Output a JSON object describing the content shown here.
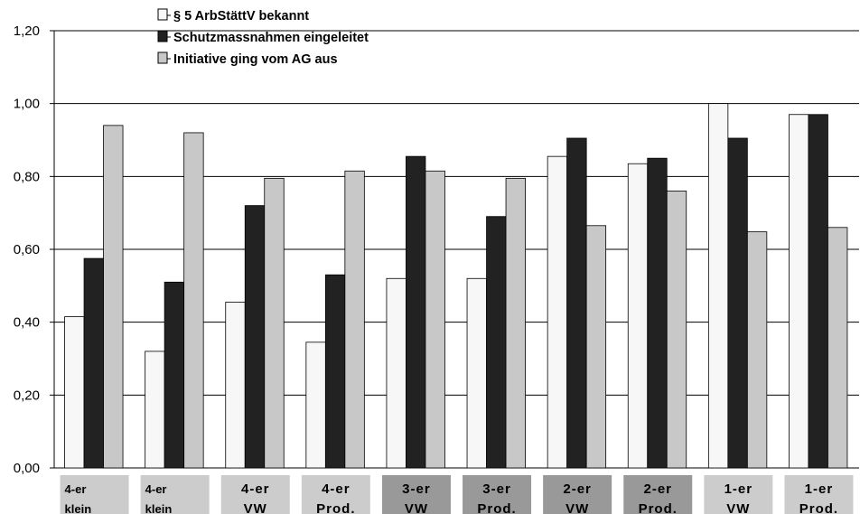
{
  "chart_data": {
    "type": "bar",
    "categories": [
      {
        "lines": [
          "4-er",
          "klein"
        ],
        "color": "#cccccc"
      },
      {
        "lines": [
          "4-er",
          "klein"
        ],
        "color": "#cccccc"
      },
      {
        "lines": [
          "4-er",
          "VW"
        ],
        "color": "#cccccc"
      },
      {
        "lines": [
          "4-er",
          "Prod."
        ],
        "color": "#cccccc"
      },
      {
        "lines": [
          "3-er",
          "VW"
        ],
        "color": "#999999"
      },
      {
        "lines": [
          "3-er",
          "Prod."
        ],
        "color": "#999999"
      },
      {
        "lines": [
          "2-er",
          "VW"
        ],
        "color": "#999999"
      },
      {
        "lines": [
          "2-er",
          "Prod."
        ],
        "color": "#999999"
      },
      {
        "lines": [
          "1-er",
          "VW"
        ],
        "color": "#cccccc"
      },
      {
        "lines": [
          "1-er",
          "Prod."
        ],
        "color": "#cccccc"
      }
    ],
    "series": [
      {
        "name": "§ 5 ArbStättV bekannt",
        "color": "#f7f7f7",
        "values": [
          0.415,
          0.32,
          0.455,
          0.345,
          0.52,
          0.52,
          0.855,
          0.835,
          1.0,
          0.97
        ]
      },
      {
        "name": "Schutzmassnahmen eingeleitet",
        "color": "#222222",
        "values": [
          0.575,
          0.51,
          0.72,
          0.53,
          0.855,
          0.69,
          0.905,
          0.85,
          0.905,
          0.97
        ]
      },
      {
        "name": "Initiative ging vom AG aus",
        "color": "#c8c8c8",
        "values": [
          0.94,
          0.92,
          0.795,
          0.815,
          0.815,
          0.795,
          0.665,
          0.76,
          0.648,
          0.66
        ]
      }
    ],
    "ylim": [
      0,
      1.2
    ],
    "yticks": [
      "0,00",
      "0,20",
      "0,40",
      "0,60",
      "0,80",
      "1,00",
      "1,20"
    ],
    "grid": true,
    "legend_position": "top-left"
  }
}
